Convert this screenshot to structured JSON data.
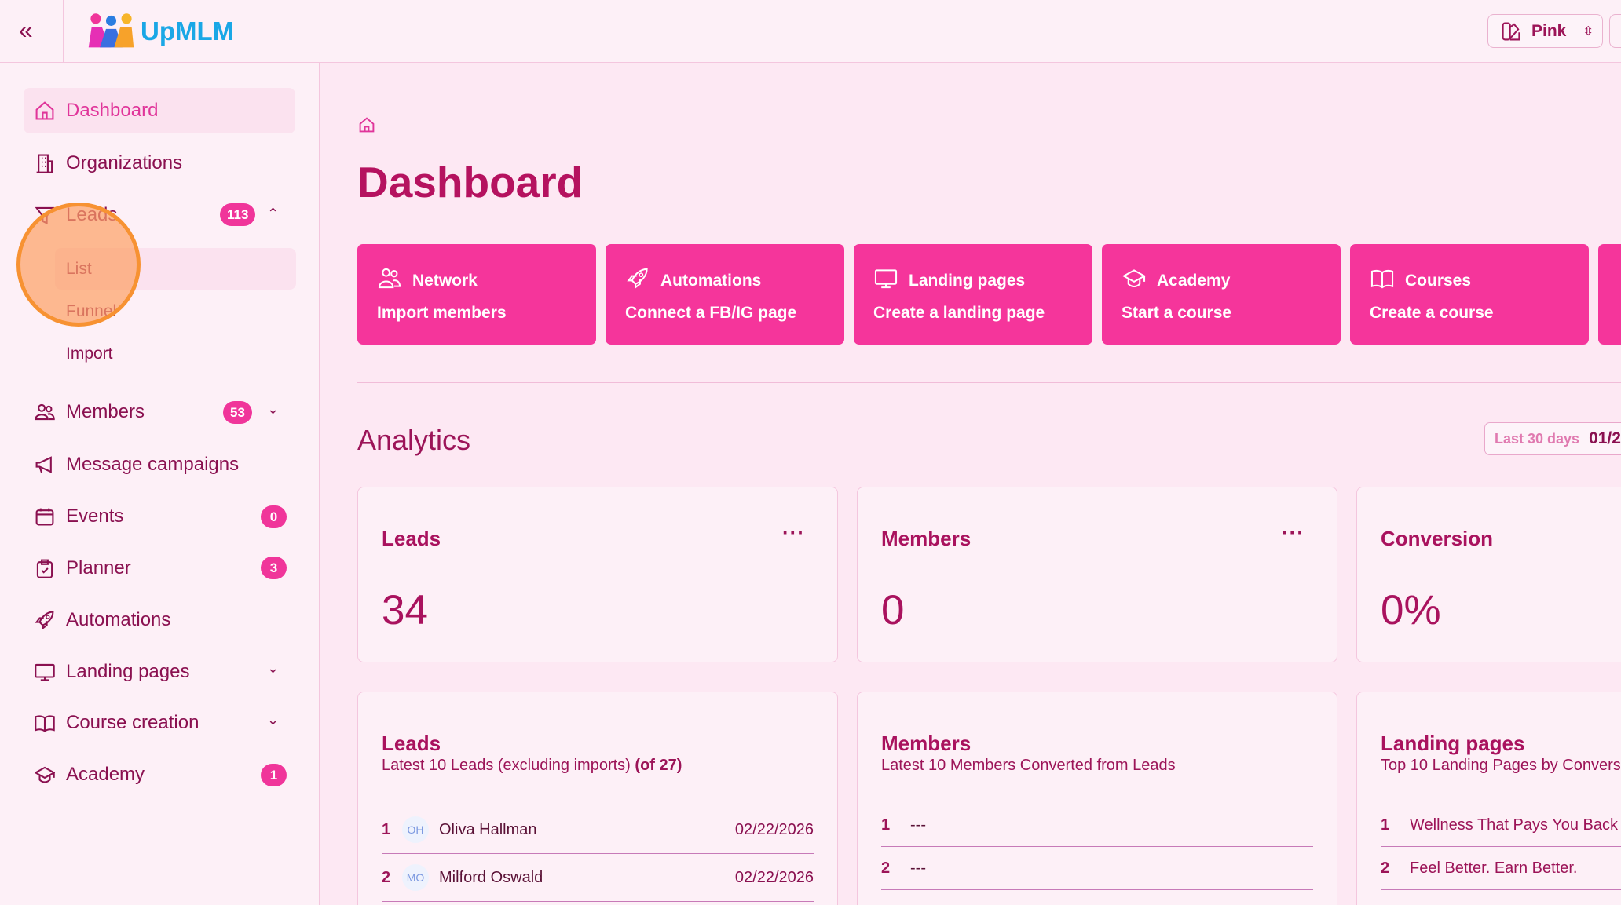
{
  "colors": {
    "accent": "#f5359b",
    "text": "#9c1458",
    "background": "#fde8f3",
    "brand": "#1aa7e6"
  },
  "header": {
    "brand": "UpMLM",
    "theme": "Pink",
    "collapse_icon": "double-chevron-left-icon"
  },
  "sidebar": {
    "items": [
      {
        "label": "Dashboard",
        "icon": "home-icon"
      },
      {
        "label": "Organizations",
        "icon": "building-icon"
      },
      {
        "label": "Leads",
        "icon": "funnel-icon",
        "badge": "113"
      },
      {
        "label": "Members",
        "icon": "users-icon",
        "badge": "53"
      },
      {
        "label": "Message campaigns",
        "icon": "megaphone-icon"
      },
      {
        "label": "Events",
        "icon": "calendar-icon",
        "badge": "0"
      },
      {
        "label": "Planner",
        "icon": "clipboard-icon",
        "badge": "3"
      },
      {
        "label": "Automations",
        "icon": "rocket-icon"
      },
      {
        "label": "Landing pages",
        "icon": "monitor-icon"
      },
      {
        "label": "Course creation",
        "icon": "book-icon"
      },
      {
        "label": "Academy",
        "icon": "graduation-cap-icon",
        "badge": "1"
      }
    ],
    "leads_sub": [
      "List",
      "Funnel",
      "Import"
    ]
  },
  "main": {
    "title": "Dashboard",
    "quick_actions": [
      {
        "title": "Network",
        "action": "Import members",
        "icon": "users-icon"
      },
      {
        "title": "Automations",
        "action": "Connect a FB/IG page",
        "icon": "rocket-icon"
      },
      {
        "title": "Landing pages",
        "action": "Create a landing page",
        "icon": "monitor-icon"
      },
      {
        "title": "Academy",
        "action": "Start a course",
        "icon": "graduation-cap-icon"
      },
      {
        "title": "Courses",
        "action": "Create a course",
        "icon": "book-icon"
      }
    ],
    "analytics": {
      "title": "Analytics",
      "range_label": "Last 30 days",
      "range_value": "01/2"
    },
    "stats": [
      {
        "label": "Leads",
        "value": "34"
      },
      {
        "label": "Members",
        "value": "0"
      },
      {
        "label": "Conversion",
        "value": "0%"
      }
    ],
    "leads_list": {
      "title": "Leads",
      "subtitle": "Latest 10 Leads (excluding imports)",
      "count": "(of 27)",
      "rows": [
        {
          "n": "1",
          "initials": "OH",
          "name": "Oliva Hallman",
          "date": "02/22/2026"
        },
        {
          "n": "2",
          "initials": "MO",
          "name": "Milford Oswald",
          "date": "02/22/2026"
        }
      ]
    },
    "members_list": {
      "title": "Members",
      "subtitle": "Latest 10 Members Converted from Leads",
      "rows": [
        {
          "n": "1",
          "name": "---"
        },
        {
          "n": "2",
          "name": "---"
        }
      ]
    },
    "landing_list": {
      "title": "Landing pages",
      "subtitle": "Top 10 Landing Pages by Convers",
      "rows": [
        {
          "n": "1",
          "name": "Wellness That Pays You Back"
        },
        {
          "n": "2",
          "name": "Feel Better. Earn Better."
        }
      ]
    }
  }
}
